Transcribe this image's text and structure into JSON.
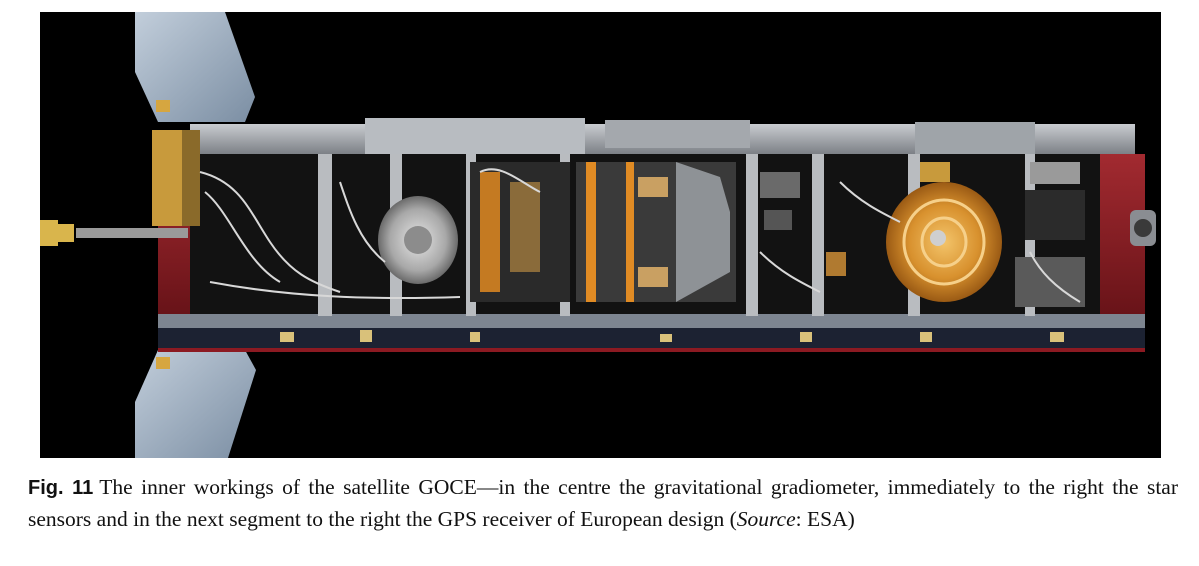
{
  "figure": {
    "label": "Fig. 11",
    "caption_main": "The inner workings of the satellite GOCE—in the centre the gravitational gradiometer, immediately to the right the star sensors and in the next segment to the right the GPS receiver of European design (",
    "source_word": "Source",
    "source_tail": ": ESA)"
  },
  "colors": {
    "background": "#000000",
    "hull_red": "#8c1a22",
    "gold": "#d08a2a",
    "solar_panel": "#9fb0c4"
  }
}
